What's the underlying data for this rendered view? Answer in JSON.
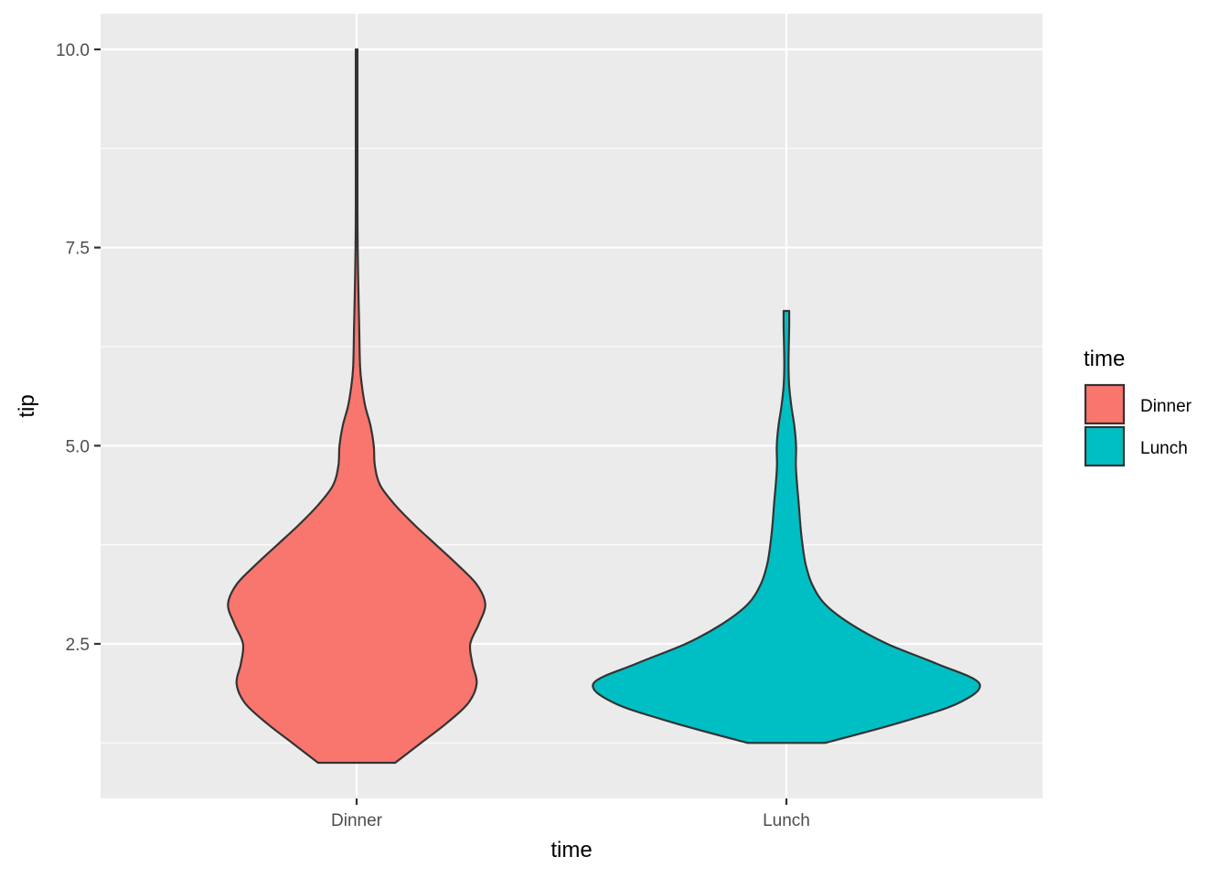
{
  "chart_data": {
    "type": "violin",
    "xlabel": "time",
    "ylabel": "tip",
    "categories": [
      "Dinner",
      "Lunch"
    ],
    "ylim": [
      0.55,
      10.45
    ],
    "yticks": [
      "2.5",
      "5.0",
      "7.5",
      "10.0"
    ],
    "ytick_values": [
      2.5,
      5.0,
      7.5,
      10.0
    ],
    "grid": true,
    "legend": {
      "title": "time",
      "position": "right",
      "entries": [
        {
          "label": "Dinner",
          "color": "#F8766D"
        },
        {
          "label": "Lunch",
          "color": "#00BFC4"
        }
      ]
    },
    "series": [
      {
        "category": "Dinner",
        "color": "#F8766D",
        "min": 1.0,
        "max": 10.0,
        "density": [
          [
            1.0,
            0.18
          ],
          [
            1.25,
            0.3
          ],
          [
            1.5,
            0.42
          ],
          [
            1.75,
            0.52
          ],
          [
            2.0,
            0.56
          ],
          [
            2.25,
            0.54
          ],
          [
            2.5,
            0.53
          ],
          [
            2.75,
            0.57
          ],
          [
            3.0,
            0.6
          ],
          [
            3.25,
            0.56
          ],
          [
            3.5,
            0.47
          ],
          [
            3.75,
            0.37
          ],
          [
            4.0,
            0.27
          ],
          [
            4.25,
            0.18
          ],
          [
            4.5,
            0.11
          ],
          [
            4.75,
            0.085
          ],
          [
            5.0,
            0.08
          ],
          [
            5.25,
            0.065
          ],
          [
            5.5,
            0.04
          ],
          [
            5.75,
            0.025
          ],
          [
            6.0,
            0.016
          ],
          [
            6.5,
            0.012
          ],
          [
            7.0,
            0.008
          ],
          [
            7.5,
            0.005
          ],
          [
            8.0,
            0.004
          ],
          [
            8.5,
            0.004
          ],
          [
            9.0,
            0.004
          ],
          [
            9.5,
            0.004
          ],
          [
            10.0,
            0.004
          ]
        ]
      },
      {
        "category": "Lunch",
        "color": "#00BFC4",
        "min": 1.25,
        "max": 6.7,
        "density": [
          [
            1.25,
            0.18
          ],
          [
            1.5,
            0.52
          ],
          [
            1.75,
            0.8
          ],
          [
            2.0,
            0.9
          ],
          [
            2.25,
            0.7
          ],
          [
            2.5,
            0.47
          ],
          [
            2.75,
            0.3
          ],
          [
            3.0,
            0.18
          ],
          [
            3.25,
            0.12
          ],
          [
            3.5,
            0.09
          ],
          [
            3.75,
            0.075
          ],
          [
            4.0,
            0.065
          ],
          [
            4.25,
            0.058
          ],
          [
            4.5,
            0.05
          ],
          [
            4.75,
            0.044
          ],
          [
            5.0,
            0.045
          ],
          [
            5.25,
            0.037
          ],
          [
            5.5,
            0.023
          ],
          [
            5.75,
            0.013
          ],
          [
            6.0,
            0.01
          ],
          [
            6.25,
            0.011
          ],
          [
            6.5,
            0.013
          ],
          [
            6.7,
            0.013
          ]
        ]
      }
    ]
  }
}
